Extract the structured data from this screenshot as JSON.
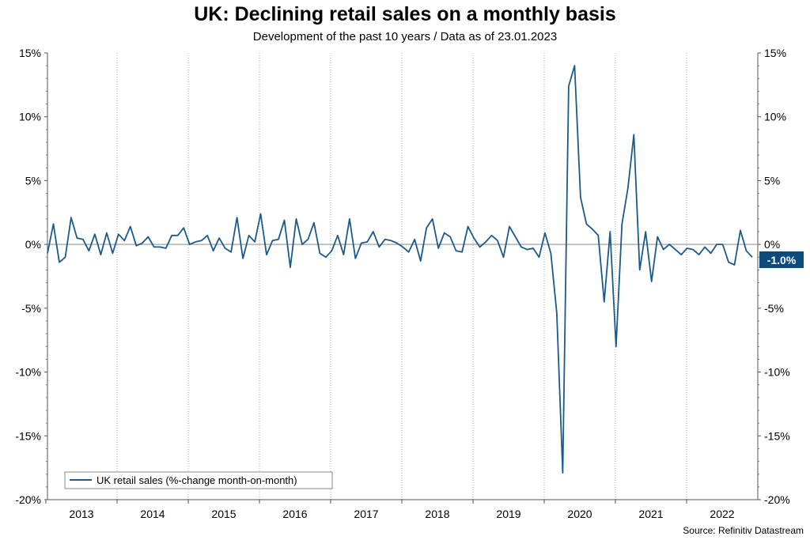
{
  "chart_data": {
    "type": "line",
    "title": "UK: Declining retail sales on a monthly basis",
    "subtitle": "Development of the past 10 years / Data as of 23.01.2023",
    "source": "Source: Refinitiv Datastream",
    "xlabel": "",
    "ylabel": "",
    "ylim": [
      -20,
      15
    ],
    "y_ticks": [
      15,
      10,
      5,
      0,
      -5,
      -10,
      -15,
      -20
    ],
    "y_tick_labels": [
      "15%",
      "10%",
      "5%",
      "0%",
      "-5%",
      "-10%",
      "-15%",
      "-20%"
    ],
    "x_tick_labels": [
      "2013",
      "2014",
      "2015",
      "2016",
      "2017",
      "2018",
      "2019",
      "2020",
      "2021",
      "2022"
    ],
    "grid": "vertical dotted at year boundaries",
    "legend": {
      "position": "bottom-left",
      "entries": [
        "UK retail sales (%-change month-on-month)"
      ]
    },
    "last_value_label": "-1.0%",
    "colors": {
      "line": "#1c5a8a",
      "label_bg": "#0b4a7c",
      "zero_line": "#a0a0a0"
    },
    "series": [
      {
        "name": "UK retail sales (%-change month-on-month)",
        "start": "2013-01",
        "frequency": "monthly",
        "values": [
          -0.7,
          1.6,
          -1.4,
          -1.0,
          2.1,
          0.5,
          0.4,
          -0.5,
          0.8,
          -0.8,
          0.9,
          -0.7,
          0.8,
          0.3,
          1.4,
          -0.1,
          0.1,
          0.6,
          -0.2,
          -0.2,
          -0.3,
          0.7,
          0.7,
          1.3,
          0.0,
          0.2,
          0.3,
          0.7,
          -0.5,
          0.5,
          -0.3,
          -0.6,
          2.1,
          -1.1,
          0.7,
          0.2,
          2.4,
          -0.8,
          0.3,
          0.4,
          1.9,
          -1.8,
          2.0,
          0.0,
          0.4,
          1.7,
          -0.7,
          -1.0,
          -0.5,
          0.7,
          -0.8,
          2.0,
          -1.1,
          0.1,
          0.2,
          1.0,
          -0.2,
          0.4,
          0.3,
          0.1,
          -0.2,
          -0.6,
          0.4,
          -1.3,
          1.3,
          2.0,
          -0.3,
          0.9,
          0.6,
          -0.5,
          -0.6,
          1.4,
          0.5,
          -0.2,
          0.2,
          0.7,
          0.3,
          -1.0,
          1.4,
          0.6,
          -0.2,
          -0.4,
          -0.3,
          -1.0,
          0.9,
          -0.7,
          -5.4,
          -17.9,
          12.4,
          14.0,
          3.7,
          1.6,
          1.2,
          0.7,
          -4.5,
          1.0,
          -8.0,
          1.6,
          4.4,
          8.6,
          -2.0,
          1.0,
          -2.9,
          0.6,
          -0.4,
          0.0,
          -0.4,
          -0.8,
          -0.3,
          -0.4,
          -0.8,
          -0.2,
          -0.7,
          0.0,
          0.0,
          -1.4,
          -1.6,
          1.1,
          -0.5,
          -1.0
        ]
      }
    ]
  }
}
